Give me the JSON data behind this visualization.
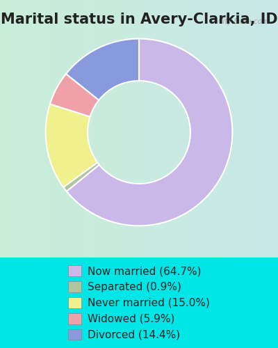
{
  "title": "Marital status in Avery-Clarkia, ID",
  "slices": [
    64.7,
    0.9,
    15.0,
    5.9,
    14.4
  ],
  "labels": [
    "Now married (64.7%)",
    "Separated (0.9%)",
    "Never married (15.0%)",
    "Widowed (5.9%)",
    "Divorced (14.4%)"
  ],
  "colors": [
    "#C9B8E8",
    "#B0C4A0",
    "#F0F08C",
    "#F0A0A8",
    "#8899DD"
  ],
  "background_color_top": "#00E5E5",
  "chart_bg_start": "#D8EED8",
  "chart_bg_end": "#C8E8E8",
  "title_fontsize": 15,
  "legend_fontsize": 11,
  "donut_width": 0.45,
  "start_angle": 90
}
